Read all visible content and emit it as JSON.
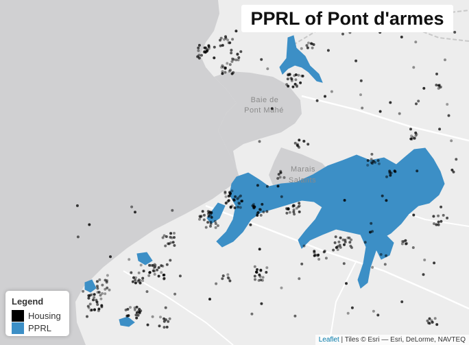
{
  "map": {
    "title": "PPRL of Pont d'armes",
    "place_labels": [
      "Baie de",
      "Pont Mahé",
      "Marais",
      "Salants"
    ],
    "colors": {
      "sea": "#d0d0d2",
      "land": "#ededed",
      "pprl": "#3c8fc6",
      "housing": "#000000",
      "boundary": "#c8c8c8",
      "road": "#ffffff"
    }
  },
  "legend": {
    "title": "Legend",
    "items": [
      {
        "label": "Housing",
        "color": "#000000"
      },
      {
        "label": "PPRL",
        "color": "#3c8fc6"
      }
    ]
  },
  "attribution": {
    "link": "Leaflet",
    "text": " | Tiles © Esri — Esri, DeLorme, NAVTEQ"
  }
}
